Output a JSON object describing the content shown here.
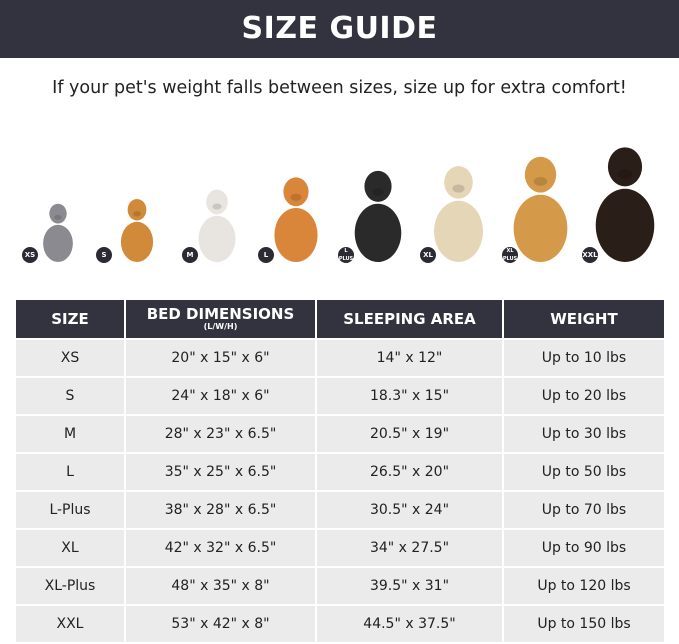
{
  "title": "SIZE GUIDE",
  "subtitle": "If your pet's weight falls between sizes, size up for extra comfort!",
  "pets": [
    {
      "badge": "XS",
      "animal": "cat",
      "color": "#8a8a90"
    },
    {
      "badge": "S",
      "animal": "pomeranian",
      "color": "#d08a3a"
    },
    {
      "badge": "M",
      "animal": "french-bulldog",
      "color": "#e8e4e0"
    },
    {
      "badge": "L",
      "animal": "shiba-inu",
      "color": "#d9853a"
    },
    {
      "badge": "L PLUS",
      "animal": "border-collie",
      "color": "#2a2a2a"
    },
    {
      "badge": "XL",
      "animal": "labrador",
      "color": "#e6d6b8"
    },
    {
      "badge": "XL PLUS",
      "animal": "golden-retriever",
      "color": "#d49a4a"
    },
    {
      "badge": "XXL",
      "animal": "doberman",
      "color": "#2a1e18"
    }
  ],
  "table": {
    "headers": {
      "size": "SIZE",
      "bed": "BED DIMENSIONS",
      "bed_sub": "(L/W/H)",
      "sleeping": "SLEEPING AREA",
      "weight": "WEIGHT"
    },
    "rows": [
      [
        "XS",
        "20\" x 15\" x 6\"",
        "14\" x 12\"",
        "Up to 10 lbs"
      ],
      [
        "S",
        "24\" x 18\" x 6\"",
        "18.3\" x 15\"",
        "Up to 20 lbs"
      ],
      [
        "M",
        "28\" x 23\" x 6.5\"",
        "20.5\" x 19\"",
        "Up to 30 lbs"
      ],
      [
        "L",
        "35\" x 25\" x 6.5\"",
        "26.5\" x 20\"",
        "Up to 50 lbs"
      ],
      [
        "L-Plus",
        "38\" x 28\" x 6.5\"",
        "30.5\" x 24\"",
        "Up to 70 lbs"
      ],
      [
        "XL",
        "42\" x 32\" x 6.5\"",
        "34\" x 27.5\"",
        "Up to 90 lbs"
      ],
      [
        "XL-Plus",
        "48\" x 35\" x 8\"",
        "39.5\" x 31\"",
        "Up to 120 lbs"
      ],
      [
        "XXL",
        "53\" x 42\" x 8\"",
        "44.5\" x 37.5\"",
        "Up to 150 lbs"
      ]
    ]
  }
}
